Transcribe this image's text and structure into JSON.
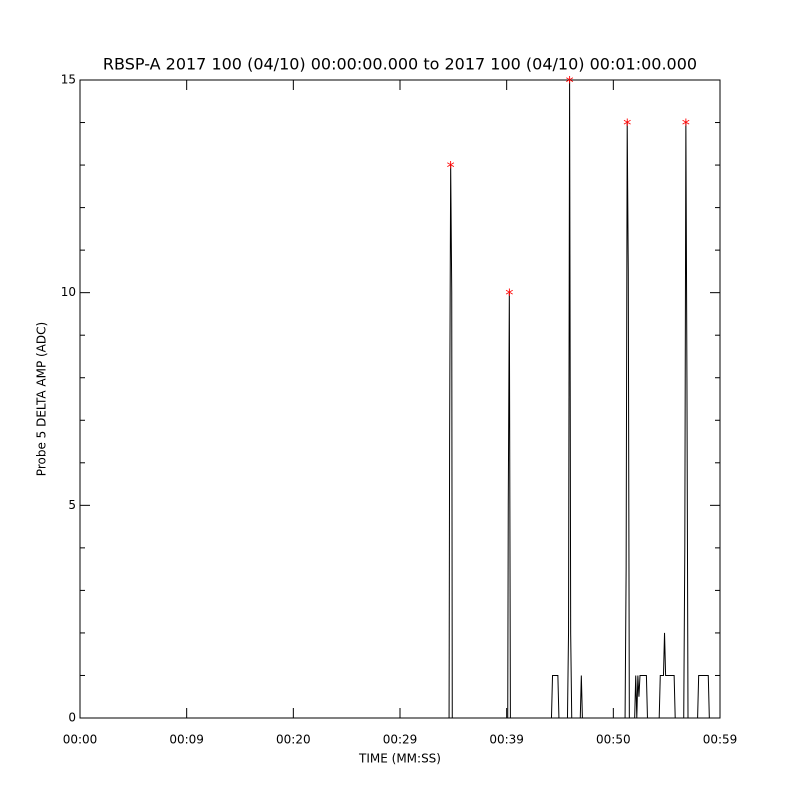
{
  "chart_data": {
    "type": "line",
    "title": "RBSP-A 2017 100 (04/10) 00:00:00.000 to 2017 100 (04/10) 00:01:00.000",
    "xlabel": "TIME (MM:SS)",
    "ylabel": "Probe 5 DELTA AMP (ADC)",
    "xlim": [
      0,
      60
    ],
    "ylim": [
      0,
      15
    ],
    "xticks": [
      {
        "value": 0,
        "label": "00:00"
      },
      {
        "value": 10,
        "label": "00:09"
      },
      {
        "value": 20,
        "label": "00:20"
      },
      {
        "value": 30,
        "label": "00:29"
      },
      {
        "value": 40,
        "label": "00:39"
      },
      {
        "value": 50,
        "label": "00:50"
      },
      {
        "value": 60,
        "label": "00:59"
      }
    ],
    "yticks": [
      0,
      5,
      10,
      15
    ],
    "yminorticks": [
      1,
      2,
      3,
      4,
      6,
      7,
      8,
      9,
      11,
      12,
      13,
      14
    ],
    "series": [
      {
        "color": "#000000",
        "x": [
          0,
          34.6,
          34.65,
          34.75,
          34.85,
          34.9,
          40.1,
          40.15,
          40.25,
          40.35,
          44.2,
          44.3,
          44.8,
          44.9,
          45.7,
          45.8,
          45.9,
          46.0,
          46.1,
          46.9,
          47.0,
          47.1,
          51.1,
          51.2,
          51.3,
          51.4,
          51.5,
          52.0,
          52.1,
          52.2,
          52.3,
          52.4,
          52.5,
          53.1,
          53.2,
          54.3,
          54.4,
          54.7,
          54.8,
          54.9,
          55.7,
          55.8,
          56.6,
          56.7,
          56.8,
          56.9,
          57.0,
          57.9,
          58.0,
          58.9,
          59.0,
          60
        ],
        "values": [
          0,
          0,
          6.5,
          13,
          10,
          0,
          0,
          5,
          10,
          0,
          0,
          1,
          1,
          0,
          0,
          2,
          15,
          2,
          0,
          0,
          1,
          0,
          0,
          3.5,
          14,
          10.5,
          0,
          0,
          1,
          0,
          1,
          0.5,
          1,
          1,
          0,
          0,
          1,
          1,
          2,
          1,
          1,
          0,
          0,
          4,
          14,
          8,
          0,
          0,
          1,
          1,
          0,
          0
        ]
      },
      {
        "color": "#ff0000",
        "marker": "*",
        "x": [
          34.75,
          40.25,
          45.9,
          51.3,
          56.8
        ],
        "values": [
          13,
          10,
          15,
          14,
          14
        ]
      }
    ]
  }
}
